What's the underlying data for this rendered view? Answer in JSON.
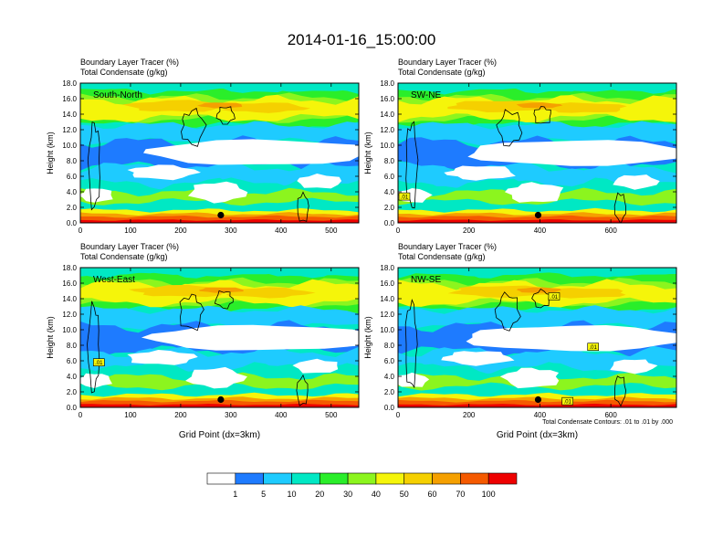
{
  "title": "2014-01-16_15:00:00",
  "colors": {
    "levels": [
      "#ffffff",
      "#1e7bff",
      "#1ecbff",
      "#00e8c4",
      "#2aee2a",
      "#8cf51e",
      "#f5f50a",
      "#f5d000",
      "#f5a000",
      "#f55a00",
      "#ee0000"
    ],
    "contour": "#000000",
    "frame": "#000000"
  },
  "colorbar": {
    "labels": [
      "1",
      "5",
      "10",
      "20",
      "30",
      "40",
      "50",
      "60",
      "70",
      "100"
    ]
  },
  "chart_data": [
    {
      "type": "heatmap",
      "panel_label": "South-North",
      "title_line1": "Boundary Layer Tracer   (%)",
      "title_line2": "Total Condensate   (g/kg)",
      "ylabel": "Height (km)",
      "xlabel": "",
      "xlim": [
        0,
        555
      ],
      "ylim": [
        0,
        18
      ],
      "xticks": [
        "0",
        "100",
        "200",
        "300",
        "400",
        "500"
      ],
      "yticks": [
        "0.0",
        "2.0",
        "4.0",
        "6.0",
        "8.0",
        "10.0",
        "12.0",
        "14.0",
        "16.0",
        "18.0"
      ],
      "marker": {
        "x": 280,
        "y": 1.0
      },
      "contour_labels": [],
      "footnote": ""
    },
    {
      "type": "heatmap",
      "panel_label": "SW-NE",
      "title_line1": "Boundary Layer Tracer   (%)",
      "title_line2": "Total Condensate   (g/kg)",
      "ylabel": "Height (km)",
      "xlabel": "",
      "xlim": [
        0,
        785
      ],
      "ylim": [
        0,
        18
      ],
      "xticks": [
        "0",
        "200",
        "400",
        "600"
      ],
      "yticks": [
        "0.0",
        "2.0",
        "4.0",
        "6.0",
        "8.0",
        "10.0",
        "12.0",
        "14.0",
        "16.0",
        "18.0"
      ],
      "marker": {
        "x": 395,
        "y": 1.0
      },
      "contour_labels": [
        {
          "text": ".01",
          "x": 18,
          "y": 3.4
        }
      ],
      "footnote": ""
    },
    {
      "type": "heatmap",
      "panel_label": "West-East",
      "title_line1": "Boundary Layer Tracer   (%)",
      "title_line2": "Total Condensate   (g/kg)",
      "ylabel": "Height (km)",
      "xlabel": "Grid Point (dx=3km)",
      "xlim": [
        0,
        555
      ],
      "ylim": [
        0,
        18
      ],
      "xticks": [
        "0",
        "100",
        "200",
        "300",
        "400",
        "500"
      ],
      "yticks": [
        "0.0",
        "2.0",
        "4.0",
        "6.0",
        "8.0",
        "10.0",
        "12.0",
        "14.0",
        "16.0",
        "18.0"
      ],
      "marker": {
        "x": 280,
        "y": 1.0
      },
      "contour_labels": [
        {
          "text": ".01",
          "x": 37,
          "y": 5.8
        }
      ],
      "footnote": ""
    },
    {
      "type": "heatmap",
      "panel_label": "NW-SE",
      "title_line1": "Boundary Layer Tracer   (%)",
      "title_line2": "Total Condensate   (g/kg)",
      "ylabel": "Height (km)",
      "xlabel": "Grid Point (dx=3km)",
      "xlim": [
        0,
        785
      ],
      "ylim": [
        0,
        18
      ],
      "xticks": [
        "0",
        "200",
        "400",
        "600"
      ],
      "yticks": [
        "0.0",
        "2.0",
        "4.0",
        "6.0",
        "8.0",
        "10.0",
        "12.0",
        "14.0",
        "16.0",
        "18.0"
      ],
      "marker": {
        "x": 395,
        "y": 1.0
      },
      "contour_labels": [
        {
          "text": ".01",
          "x": 440,
          "y": 14.3
        },
        {
          "text": ".01",
          "x": 550,
          "y": 7.8
        },
        {
          "text": ".01",
          "x": 478,
          "y": 0.8
        }
      ],
      "footnote": "Total Condensate Contours: .01 to .01 by .000"
    }
  ]
}
